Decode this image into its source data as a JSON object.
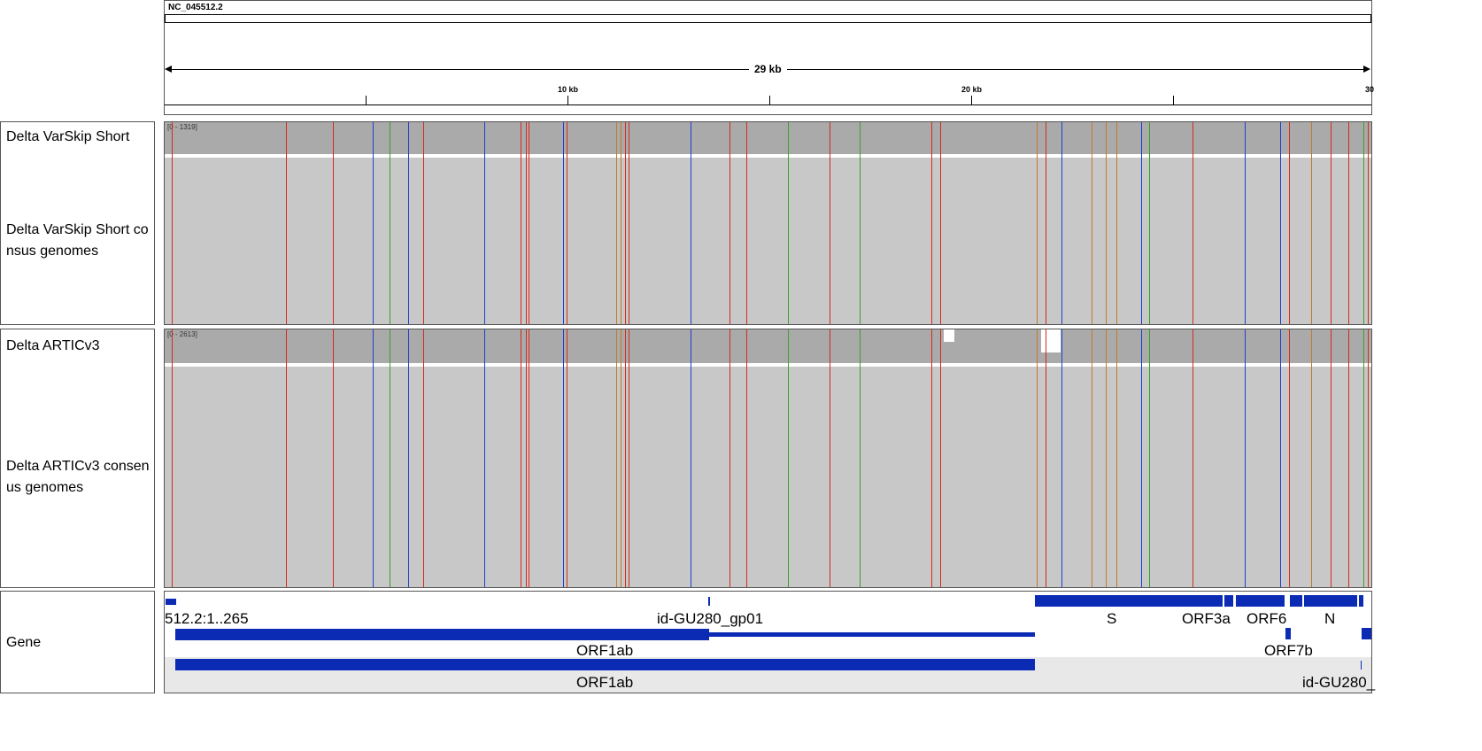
{
  "header": {
    "chromosome": "NC_045512.2",
    "span_label": "29 kb",
    "ticks": [
      "10 kb",
      "20 kb",
      "30"
    ]
  },
  "tracks": [
    {
      "name": "Delta VarSkip Short",
      "kind": "coverage",
      "range": "[0 - 1319]"
    },
    {
      "name": "Delta VarSkip Short co\nnsus genomes",
      "kind": "consensus"
    },
    {
      "name": "Delta ARTICv3",
      "kind": "coverage",
      "range": "[0 - 2613]"
    },
    {
      "name": "Delta ARTICv3 consen\nus genomes",
      "kind": "consensus"
    },
    {
      "name": "Gene",
      "kind": "gene"
    }
  ],
  "genes": {
    "region_label": "512.2:1..265",
    "gp01_label": "id-GU280_gp01",
    "orf1ab_label_1": "ORF1ab",
    "orf1ab_label_2": "ORF1ab",
    "s_label": "S",
    "orf3a_label": "ORF3a",
    "orf6_label": "ORF6",
    "n_label": "N",
    "orf7b_label": "ORF7b",
    "tail_label": "id-GU280_"
  },
  "colors": {
    "coverage_gray": "#aaaaaa",
    "consensus_gray": "#c8c8c8",
    "variant_red": "#d62a1e",
    "variant_blue": "#1f3fd1",
    "variant_green": "#3aa02a",
    "variant_orange": "#c47a28",
    "gene_blue": "#0b2bb5"
  }
}
